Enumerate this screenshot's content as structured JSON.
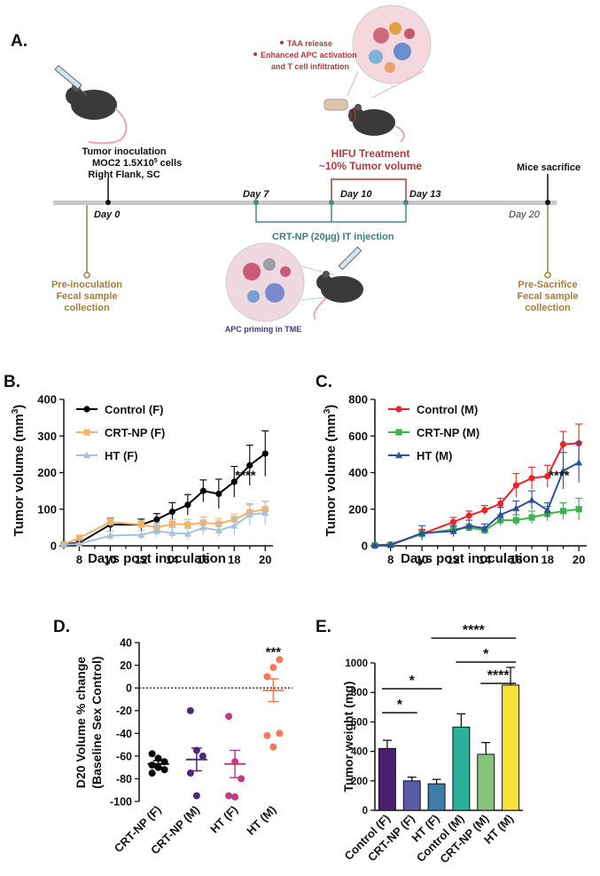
{
  "panelA": {
    "label": "A.",
    "inoculation": {
      "line1": "Tumor inoculation",
      "line2": "MOC2 1.5X10",
      "exp": "5",
      "line2b": " cells",
      "line3": "Right Flank, SC"
    },
    "bullets": [
      "TAA release",
      "Enhanced APC activation",
      "and T cell infiltration"
    ],
    "hifu": {
      "line1": "HIFU Treatment",
      "line2": "~10% Tumor volume"
    },
    "sacrifice": "Mice sacrifice",
    "days": [
      "Day 0",
      "Day 7",
      "Day 10",
      "Day 13",
      "Day 20"
    ],
    "injection": "CRT-NP (20µg) IT injection",
    "pre_inoculation": [
      "Pre-inoculation",
      "Fecal sample",
      "collection"
    ],
    "pre_sacrifice": [
      "Pre-Sacrifice",
      "Fecal sample",
      "collection"
    ],
    "apc": "APC priming in TME",
    "colors": {
      "timeline": "#bfbfbf",
      "hifu": "#b03a3a",
      "injection": "#4a8a86",
      "fecal": "#a67c3d",
      "apc": "#3a3a8c"
    }
  },
  "chart_data": [
    {
      "panel": "B.",
      "type": "line",
      "ylabel": "Tumor volume (mm",
      "ylabel_exp": "3",
      "ylabel_end": ")",
      "xlabel": "Days post inoculation",
      "xlim": [
        7,
        20.5
      ],
      "ylim": [
        0,
        400
      ],
      "xticks": [
        8,
        10,
        12,
        14,
        16,
        18,
        20
      ],
      "yticks": [
        0,
        100,
        200,
        300,
        400
      ],
      "annotation": "****",
      "series": [
        {
          "name": "Control (F)",
          "color": "#000000",
          "marker": "circle",
          "x": [
            7,
            8,
            10,
            12,
            13,
            14,
            15,
            16,
            17,
            18,
            19,
            20
          ],
          "y": [
            5,
            8,
            58,
            58,
            72,
            93,
            112,
            150,
            142,
            175,
            220,
            252
          ],
          "err": [
            3,
            4,
            18,
            15,
            16,
            25,
            28,
            30,
            40,
            42,
            55,
            62
          ]
        },
        {
          "name": "CRT-NP (F)",
          "color": "#f2b36a",
          "marker": "square",
          "x": [
            7,
            8,
            10,
            12,
            13,
            14,
            15,
            16,
            17,
            18,
            19,
            20
          ],
          "y": [
            4,
            22,
            65,
            58,
            50,
            60,
            58,
            63,
            60,
            72,
            92,
            100
          ],
          "err": [
            2,
            6,
            12,
            10,
            12,
            12,
            14,
            16,
            15,
            15,
            20,
            22
          ]
        },
        {
          "name": "HT (F)",
          "color": "#a7c1dc",
          "marker": "triangle",
          "x": [
            7,
            8,
            10,
            12,
            13,
            14,
            15,
            16,
            17,
            18,
            19,
            20
          ],
          "y": [
            3,
            5,
            28,
            30,
            40,
            35,
            33,
            50,
            42,
            55,
            85,
            90
          ],
          "err": [
            2,
            3,
            12,
            12,
            15,
            15,
            15,
            20,
            18,
            25,
            30,
            32
          ]
        }
      ]
    },
    {
      "panel": "C.",
      "type": "line",
      "ylabel": "Tumor volume (mm",
      "ylabel_exp": "3",
      "ylabel_end": ")",
      "xlabel": "Days post inoculation",
      "xlim": [
        7,
        20.5
      ],
      "ylim": [
        0,
        800
      ],
      "xticks": [
        8,
        10,
        12,
        14,
        16,
        18,
        20
      ],
      "yticks": [
        0,
        200,
        400,
        600,
        800
      ],
      "annotation": "****",
      "series": [
        {
          "name": "Control (M)",
          "color": "#e8262a",
          "marker": "circle",
          "x": [
            7,
            8,
            10,
            12,
            13,
            14,
            15,
            16,
            17,
            18,
            19,
            20
          ],
          "y": [
            3,
            8,
            65,
            130,
            165,
            195,
            230,
            330,
            370,
            380,
            555,
            560
          ],
          "err": [
            2,
            4,
            25,
            25,
            25,
            25,
            30,
            65,
            60,
            60,
            70,
            105
          ]
        },
        {
          "name": "CRT-NP (M)",
          "color": "#3bb54a",
          "marker": "square",
          "x": [
            7,
            8,
            10,
            12,
            13,
            14,
            15,
            16,
            17,
            18,
            19,
            20
          ],
          "y": [
            3,
            5,
            65,
            90,
            100,
            85,
            140,
            140,
            155,
            175,
            190,
            200
          ],
          "err": [
            2,
            3,
            20,
            20,
            20,
            18,
            30,
            30,
            35,
            40,
            45,
            60
          ]
        },
        {
          "name": "HT (M)",
          "color": "#2d4f9e",
          "marker": "triangle",
          "x": [
            7,
            8,
            10,
            12,
            13,
            14,
            15,
            16,
            17,
            18,
            19,
            20
          ],
          "y": [
            3,
            5,
            70,
            80,
            110,
            95,
            170,
            205,
            250,
            195,
            410,
            455
          ],
          "err": [
            2,
            3,
            40,
            30,
            30,
            25,
            40,
            40,
            50,
            40,
            100,
            110
          ]
        }
      ]
    },
    {
      "panel": "D.",
      "type": "scatter",
      "ylabel_line1": "D20 Volume % change",
      "ylabel_line2": "(Baseline Sex Control)",
      "ylim": [
        -100,
        40
      ],
      "yticks": [
        -100,
        -80,
        -60,
        -40,
        -20,
        0,
        20,
        40
      ],
      "categories": [
        "CRT-NP (F)",
        "CRT-NP (M)",
        "HT (F)",
        "HT (M)"
      ],
      "colors": [
        "#000000",
        "#4b2a7a",
        "#c03a8a",
        "#f07a5a"
      ],
      "points": [
        [
          -58,
          -62,
          -65,
          -68,
          -70,
          -72,
          -75
        ],
        [
          -20,
          -55,
          -60,
          -75,
          -95
        ],
        [
          -25,
          -65,
          -80,
          -95,
          -96
        ],
        [
          -42,
          -52,
          -40,
          10,
          18,
          25
        ]
      ],
      "means": [
        -67,
        -63,
        -67,
        -2
      ],
      "sems": [
        3,
        10,
        12,
        10
      ],
      "annotation": "***"
    },
    {
      "panel": "E.",
      "type": "bar",
      "ylabel": "Tumor weight (mg)",
      "ylim": [
        0,
        1000
      ],
      "yticks": [
        0,
        200,
        400,
        600,
        800,
        1000
      ],
      "categories": [
        "Control (F)",
        "CRT-NP (F)",
        "HT (F)",
        "Control (M)",
        "CRT-NP (M)",
        "HT (M)"
      ],
      "values": [
        420,
        200,
        180,
        565,
        380,
        850
      ],
      "err": [
        55,
        25,
        30,
        90,
        80,
        120
      ],
      "colors": [
        "#4a1f6e",
        "#5a5aa8",
        "#3b7fa8",
        "#2bb09a",
        "#86c47a",
        "#f7e23a"
      ],
      "significance": [
        {
          "from": 0,
          "to": 2,
          "label": "*"
        },
        {
          "from": 0,
          "to": 1,
          "label": "*"
        },
        {
          "from": 2,
          "to": 5,
          "label": "****"
        },
        {
          "from": 3,
          "to": 5,
          "label": "*"
        },
        {
          "from": 4,
          "to": 5,
          "label": "****"
        }
      ]
    }
  ]
}
